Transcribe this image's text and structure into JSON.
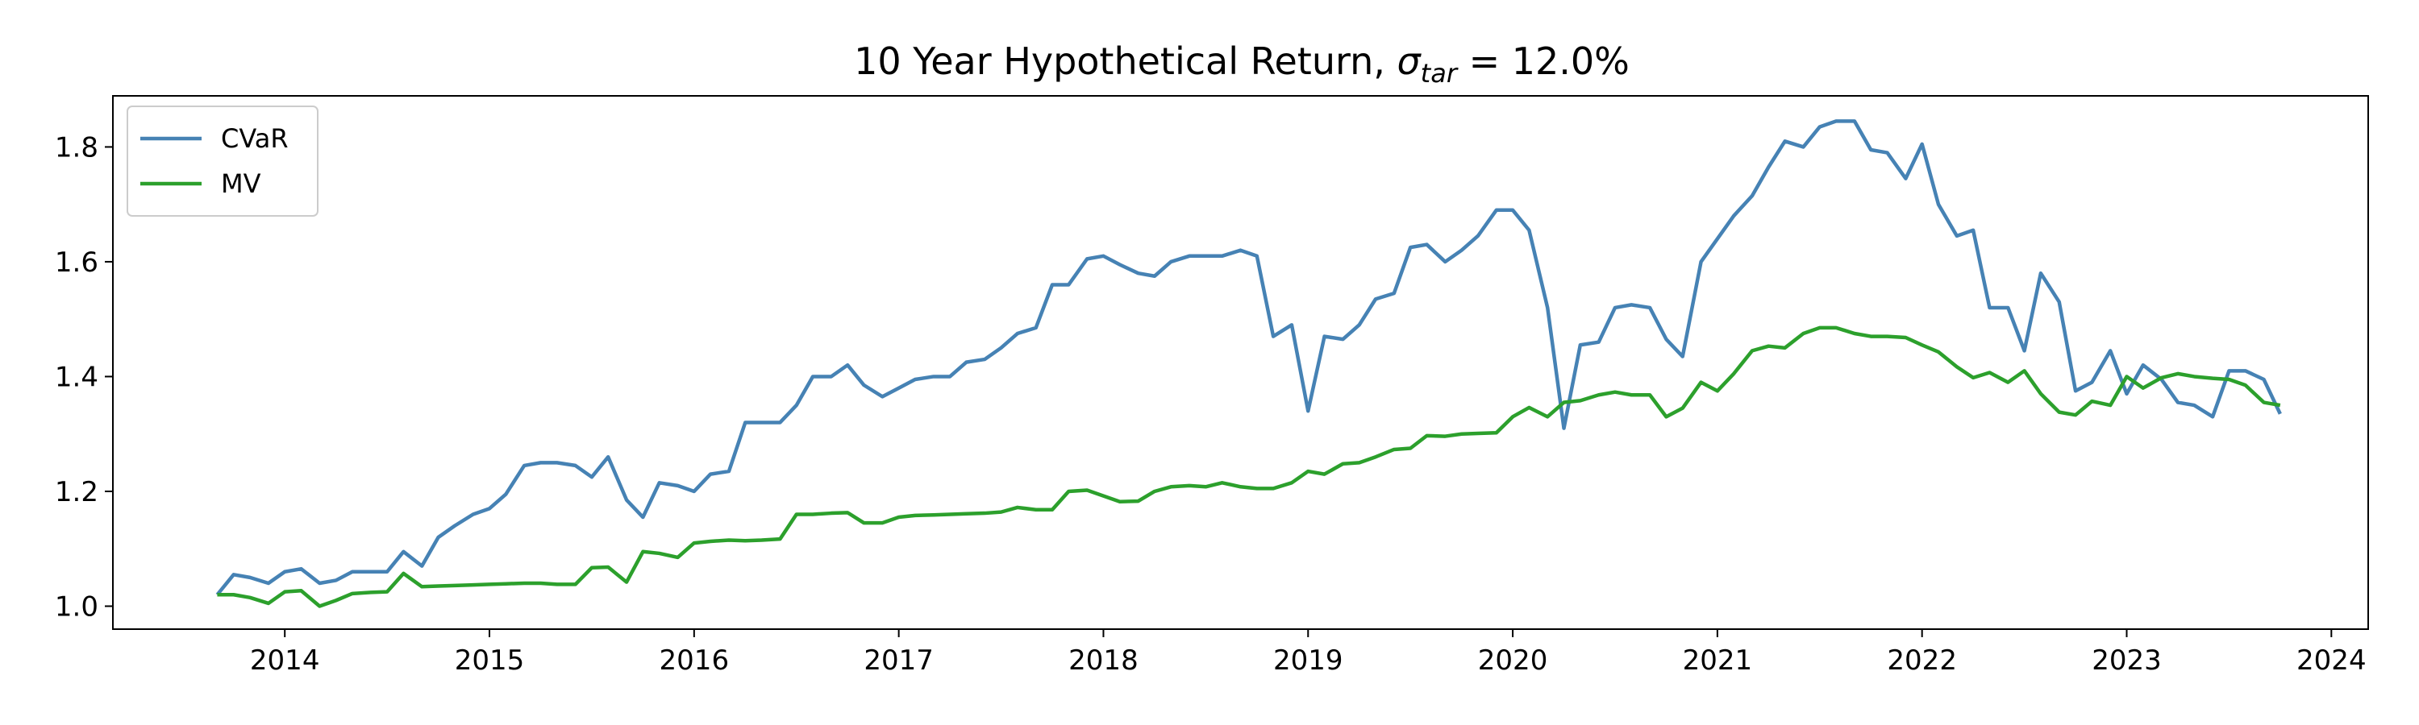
{
  "chart_data": {
    "type": "line",
    "title": [
      "10 Year Hypothetical Return, ",
      "σ",
      "tar",
      " = 12.0%"
    ],
    "x": [
      2013.67,
      2013.75,
      2013.83,
      2013.92,
      2014.0,
      2014.08,
      2014.17,
      2014.25,
      2014.33,
      2014.42,
      2014.5,
      2014.58,
      2014.67,
      2014.75,
      2014.83,
      2014.92,
      2015.0,
      2015.08,
      2015.17,
      2015.25,
      2015.33,
      2015.42,
      2015.5,
      2015.58,
      2015.67,
      2015.75,
      2015.83,
      2015.92,
      2016.0,
      2016.08,
      2016.17,
      2016.25,
      2016.33,
      2016.42,
      2016.5,
      2016.58,
      2016.67,
      2016.75,
      2016.83,
      2016.92,
      2017.0,
      2017.08,
      2017.17,
      2017.25,
      2017.33,
      2017.42,
      2017.5,
      2017.58,
      2017.67,
      2017.75,
      2017.83,
      2017.92,
      2018.0,
      2018.08,
      2018.17,
      2018.25,
      2018.33,
      2018.42,
      2018.5,
      2018.58,
      2018.67,
      2018.75,
      2018.83,
      2018.92,
      2019.0,
      2019.08,
      2019.17,
      2019.25,
      2019.33,
      2019.42,
      2019.5,
      2019.58,
      2019.67,
      2019.75,
      2019.83,
      2019.92,
      2020.0,
      2020.08,
      2020.17,
      2020.25,
      2020.33,
      2020.42,
      2020.5,
      2020.58,
      2020.67,
      2020.75,
      2020.83,
      2020.92,
      2021.0,
      2021.08,
      2021.17,
      2021.25,
      2021.33,
      2021.42,
      2021.5,
      2021.58,
      2021.67,
      2021.75,
      2021.83,
      2021.92,
      2022.0,
      2022.08,
      2022.17,
      2022.25,
      2022.33,
      2022.42,
      2022.5,
      2022.58,
      2022.67,
      2022.75,
      2022.83,
      2022.92,
      2023.0,
      2023.08,
      2023.17,
      2023.25,
      2023.33,
      2023.42,
      2023.5,
      2023.58,
      2023.67,
      2023.75
    ],
    "series": [
      {
        "name": "CVaR",
        "color": "#4682b4",
        "values": [
          1.02,
          1.055,
          1.05,
          1.04,
          1.06,
          1.065,
          1.04,
          1.045,
          1.06,
          1.06,
          1.06,
          1.095,
          1.07,
          1.12,
          1.14,
          1.16,
          1.17,
          1.195,
          1.245,
          1.25,
          1.25,
          1.245,
          1.225,
          1.26,
          1.185,
          1.155,
          1.215,
          1.21,
          1.2,
          1.23,
          1.235,
          1.32,
          1.32,
          1.32,
          1.35,
          1.4,
          1.4,
          1.42,
          1.385,
          1.365,
          1.38,
          1.395,
          1.4,
          1.4,
          1.425,
          1.43,
          1.45,
          1.475,
          1.485,
          1.56,
          1.56,
          1.605,
          1.61,
          1.595,
          1.58,
          1.575,
          1.6,
          1.61,
          1.61,
          1.61,
          1.62,
          1.61,
          1.47,
          1.49,
          1.34,
          1.47,
          1.465,
          1.49,
          1.535,
          1.545,
          1.625,
          1.63,
          1.6,
          1.62,
          1.645,
          1.69,
          1.69,
          1.655,
          1.52,
          1.31,
          1.455,
          1.46,
          1.52,
          1.525,
          1.52,
          1.465,
          1.435,
          1.6,
          1.64,
          1.68,
          1.715,
          1.765,
          1.81,
          1.8,
          1.835,
          1.845,
          1.845,
          1.795,
          1.79,
          1.745,
          1.805,
          1.7,
          1.645,
          1.655,
          1.52,
          1.52,
          1.445,
          1.58,
          1.53,
          1.375,
          1.39,
          1.445,
          1.37,
          1.42,
          1.395,
          1.355,
          1.35,
          1.33,
          1.41,
          1.41,
          1.395,
          1.335
        ]
      },
      {
        "name": "MV",
        "color": "#2ca02c",
        "values": [
          1.02,
          1.02,
          1.015,
          1.005,
          1.025,
          1.027,
          1.0,
          1.01,
          1.022,
          1.024,
          1.025,
          1.057,
          1.034,
          1.035,
          1.036,
          1.037,
          1.038,
          1.039,
          1.04,
          1.04,
          1.038,
          1.038,
          1.067,
          1.068,
          1.042,
          1.095,
          1.092,
          1.085,
          1.11,
          1.113,
          1.115,
          1.114,
          1.115,
          1.117,
          1.16,
          1.16,
          1.162,
          1.163,
          1.145,
          1.145,
          1.155,
          1.158,
          1.159,
          1.16,
          1.161,
          1.162,
          1.164,
          1.172,
          1.168,
          1.168,
          1.2,
          1.202,
          1.192,
          1.182,
          1.183,
          1.2,
          1.208,
          1.21,
          1.208,
          1.215,
          1.208,
          1.205,
          1.205,
          1.215,
          1.235,
          1.23,
          1.248,
          1.25,
          1.26,
          1.273,
          1.275,
          1.297,
          1.296,
          1.3,
          1.301,
          1.302,
          1.33,
          1.346,
          1.33,
          1.355,
          1.358,
          1.368,
          1.373,
          1.368,
          1.368,
          1.33,
          1.345,
          1.39,
          1.375,
          1.405,
          1.445,
          1.453,
          1.45,
          1.475,
          1.485,
          1.485,
          1.475,
          1.47,
          1.47,
          1.468,
          1.455,
          1.443,
          1.417,
          1.398,
          1.407,
          1.39,
          1.41,
          1.37,
          1.338,
          1.333,
          1.357,
          1.35,
          1.4,
          1.38,
          1.398,
          1.405,
          1.4,
          1.397,
          1.395,
          1.385,
          1.355,
          1.35
        ]
      }
    ],
    "xlim": [
      2013.16,
      2024.18
    ],
    "xticks": [
      2014,
      2015,
      2016,
      2017,
      2018,
      2019,
      2020,
      2021,
      2022,
      2023,
      2024
    ],
    "ylim": [
      0.96,
      1.889
    ],
    "yticks": [
      {
        "value": 1,
        "label": "1.0"
      },
      1.2,
      1.4,
      1.6,
      1.8
    ],
    "grid": false,
    "legend": "upper left"
  }
}
